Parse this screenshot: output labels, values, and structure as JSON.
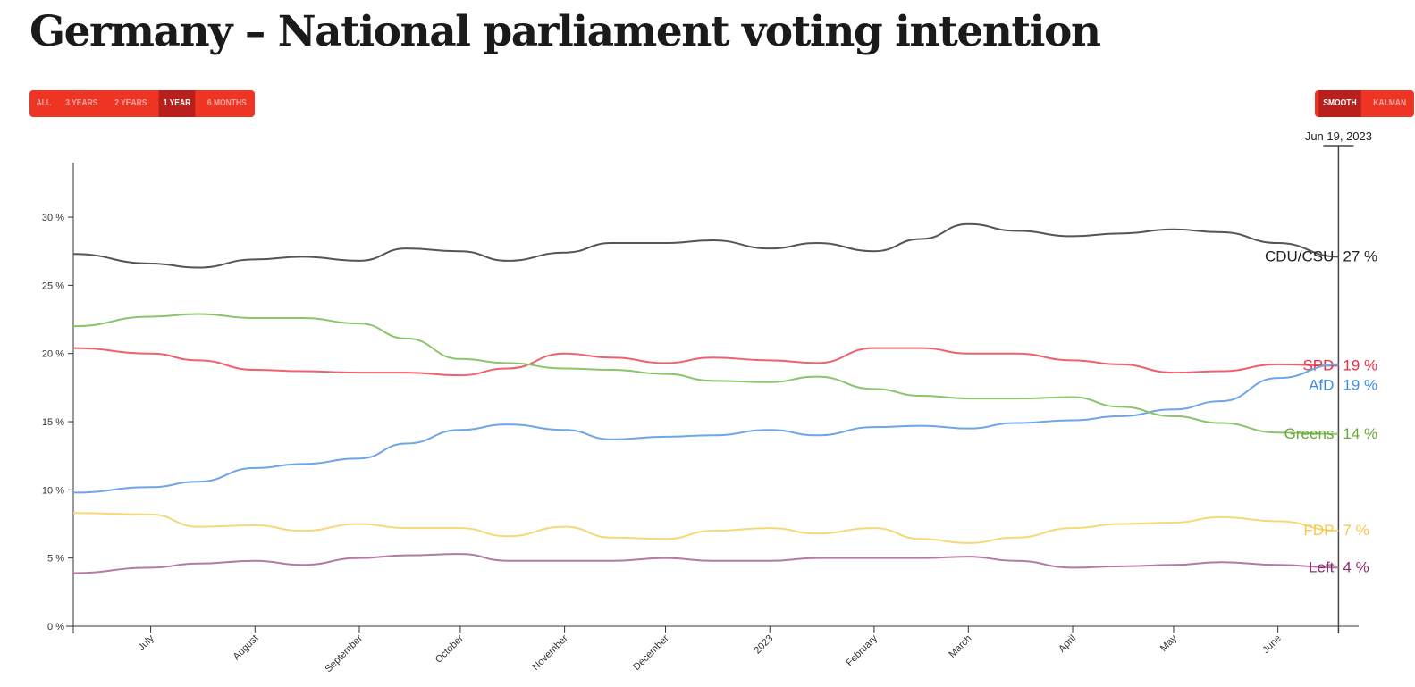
{
  "title": "Germany – National parliament voting intention",
  "range_buttons": [
    {
      "label": "ALL",
      "active": false
    },
    {
      "label": "3 YEARS",
      "active": false
    },
    {
      "label": "2 YEARS",
      "active": false
    },
    {
      "label": "1 YEAR",
      "active": true
    },
    {
      "label": "6 MONTHS",
      "active": false
    }
  ],
  "method_buttons": [
    {
      "label": "SMOOTH",
      "active": true
    },
    {
      "label": "KALMAN",
      "active": false
    }
  ],
  "chart_data": {
    "type": "line",
    "title": "Germany – National parliament voting intention",
    "cursor_date_label": "Jun 19, 2023",
    "cursor_date": "2023-06-19",
    "xlim": [
      "2022-06-08",
      "2023-06-25"
    ],
    "ylim": [
      0,
      34
    ],
    "y_ticks": [
      0,
      5,
      10,
      15,
      20,
      25,
      30
    ],
    "y_tick_suffix": " %",
    "x_ticks": [
      {
        "date": "2022-07-01",
        "label": "July"
      },
      {
        "date": "2022-08-01",
        "label": "August"
      },
      {
        "date": "2022-09-01",
        "label": "September"
      },
      {
        "date": "2022-10-01",
        "label": "October"
      },
      {
        "date": "2022-11-01",
        "label": "November"
      },
      {
        "date": "2022-12-01",
        "label": "December"
      },
      {
        "date": "2023-01-01",
        "label": "2023"
      },
      {
        "date": "2023-02-01",
        "label": "February"
      },
      {
        "date": "2023-03-01",
        "label": "March"
      },
      {
        "date": "2023-04-01",
        "label": "April"
      },
      {
        "date": "2023-05-01",
        "label": "May"
      },
      {
        "date": "2023-06-01",
        "label": "June"
      }
    ],
    "grid": false,
    "x": [
      "2022-06-08",
      "2022-07-01",
      "2022-07-15",
      "2022-08-01",
      "2022-08-15",
      "2022-09-01",
      "2022-09-15",
      "2022-10-01",
      "2022-10-15",
      "2022-11-01",
      "2022-11-15",
      "2022-12-01",
      "2022-12-15",
      "2023-01-01",
      "2023-01-15",
      "2023-02-01",
      "2023-02-15",
      "2023-03-01",
      "2023-03-15",
      "2023-04-01",
      "2023-04-15",
      "2023-05-01",
      "2023-05-15",
      "2023-06-01",
      "2023-06-19"
    ],
    "series": [
      {
        "name": "CDU/CSU",
        "end_label": "27 %",
        "color": "#555555",
        "label_color": "#222222",
        "values": [
          27.3,
          26.6,
          26.3,
          26.9,
          27.1,
          26.8,
          27.7,
          27.5,
          26.8,
          27.4,
          28.1,
          28.1,
          28.3,
          27.7,
          28.1,
          27.5,
          28.4,
          29.5,
          29.0,
          28.6,
          28.8,
          29.1,
          28.9,
          28.1,
          27.1
        ]
      },
      {
        "name": "SPD",
        "end_label": "19 %",
        "color": "#f0606e",
        "label_color": "#e8303f",
        "values": [
          20.4,
          20.0,
          19.5,
          18.8,
          18.7,
          18.6,
          18.6,
          18.4,
          18.9,
          20.0,
          19.7,
          19.3,
          19.7,
          19.5,
          19.3,
          20.4,
          20.4,
          20.0,
          20.0,
          19.5,
          19.2,
          18.6,
          18.7,
          19.2,
          19.1
        ]
      },
      {
        "name": "AfD",
        "end_label": "19 %",
        "color": "#6ea6e8",
        "label_color": "#3d8ee0",
        "values": [
          9.8,
          10.2,
          10.6,
          11.6,
          11.9,
          12.3,
          13.4,
          14.4,
          14.8,
          14.4,
          13.7,
          13.9,
          14.0,
          14.4,
          14.0,
          14.6,
          14.7,
          14.5,
          14.9,
          15.1,
          15.4,
          15.9,
          16.5,
          18.2,
          19.2
        ]
      },
      {
        "name": "Greens",
        "end_label": "14 %",
        "color": "#8bc46a",
        "label_color": "#6aa839",
        "values": [
          22.0,
          22.7,
          22.9,
          22.6,
          22.6,
          22.2,
          21.1,
          19.6,
          19.3,
          18.9,
          18.8,
          18.5,
          18.0,
          17.9,
          18.3,
          17.4,
          16.9,
          16.7,
          16.7,
          16.8,
          16.1,
          15.4,
          14.9,
          14.2,
          14.1
        ]
      },
      {
        "name": "FDP",
        "end_label": "7 %",
        "color": "#f5d878",
        "label_color": "#f2c94c",
        "values": [
          8.3,
          8.2,
          7.3,
          7.4,
          7.0,
          7.5,
          7.2,
          7.2,
          6.6,
          7.3,
          6.5,
          6.4,
          7.0,
          7.2,
          6.8,
          7.2,
          6.4,
          6.1,
          6.5,
          7.2,
          7.5,
          7.6,
          8.0,
          7.7,
          7.0
        ]
      },
      {
        "name": "Left",
        "end_label": "4 %",
        "color": "#b57aa2",
        "label_color": "#8b2f6e",
        "values": [
          3.9,
          4.3,
          4.6,
          4.8,
          4.5,
          5.0,
          5.2,
          5.3,
          4.8,
          4.8,
          4.8,
          5.0,
          4.8,
          4.8,
          5.0,
          5.0,
          5.0,
          5.1,
          4.8,
          4.3,
          4.4,
          4.5,
          4.7,
          4.5,
          4.3
        ]
      }
    ]
  }
}
